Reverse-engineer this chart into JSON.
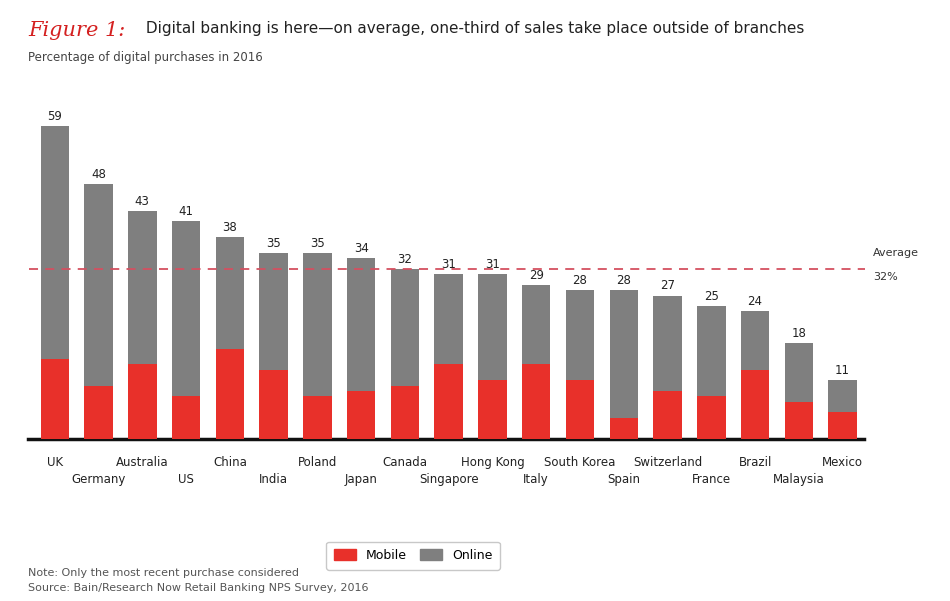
{
  "categories_ordered": [
    "UK",
    "Germany",
    "Australia",
    "US",
    "China",
    "India",
    "Poland",
    "Japan",
    "Canada",
    "Singapore",
    "Hong Kong",
    "Italy",
    "South Korea",
    "Spain",
    "Switzerland",
    "France",
    "Brazil",
    "Malaysia",
    "Mexico"
  ],
  "row1_labels": [
    "UK",
    "Australia",
    "China",
    "Poland",
    "Canada",
    "Hong Kong",
    "South Korea",
    "Switzerland",
    "Brazil",
    "Mexico"
  ],
  "row2_labels": [
    "Germany",
    "US",
    "India",
    "Japan",
    "Singapore",
    "Italy",
    "Spain",
    "France",
    "Malaysia"
  ],
  "totals": [
    59,
    48,
    43,
    41,
    38,
    35,
    35,
    34,
    32,
    31,
    31,
    29,
    28,
    28,
    27,
    25,
    24,
    18,
    11
  ],
  "mobile": [
    15,
    10,
    14,
    8,
    17,
    13,
    8,
    9,
    10,
    14,
    11,
    14,
    11,
    4,
    9,
    8,
    13,
    7,
    5
  ],
  "bar_color_online": "#7f7f7f",
  "bar_color_mobile": "#e8302a",
  "average_line": 32,
  "average_label_line1": "Average",
  "average_label_line2": "32%",
  "title_italic": "Figure 1:",
  "title_rest": " Digital banking is here—on average, one-third of sales take place outside of branches",
  "ylabel": "Percentage of digital purchases in 2016",
  "note": "Note: Only the most recent purchase considered",
  "source": "Source: Bain/Research Now Retail Banking NPS Survey, 2016",
  "legend_mobile": "Mobile",
  "legend_online": "Online",
  "background_color": "#ffffff",
  "bar_width": 0.65
}
